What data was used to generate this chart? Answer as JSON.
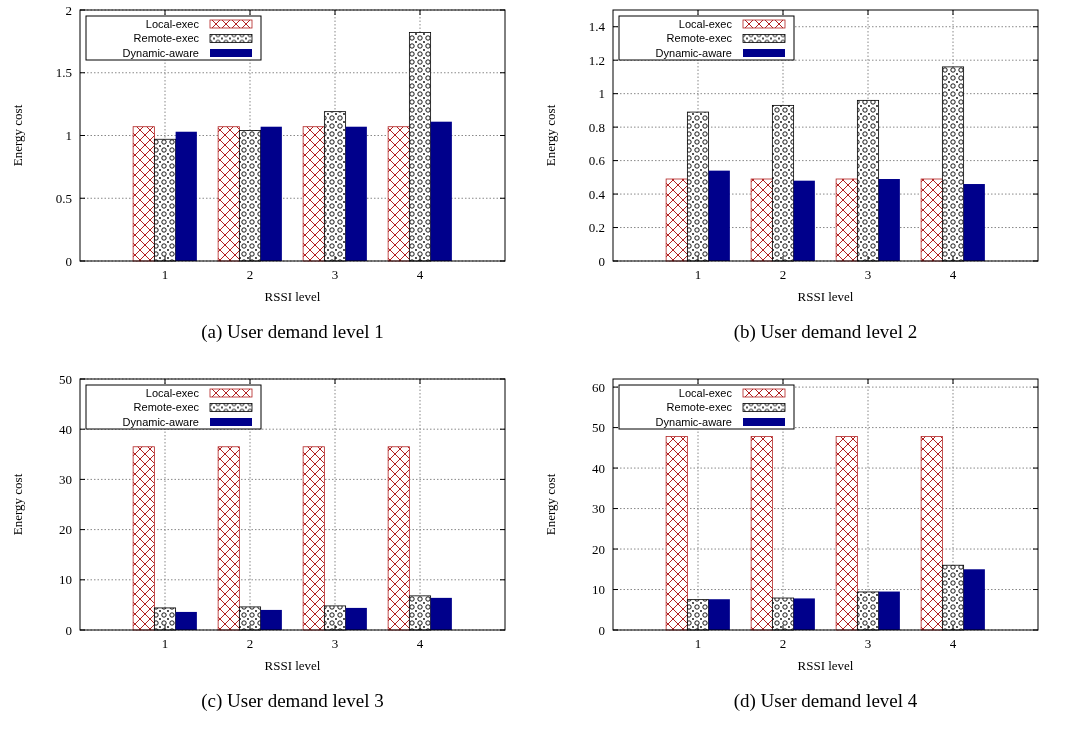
{
  "chart_data": [
    {
      "type": "bar",
      "title": "(a) User demand level 1",
      "xlabel": "RSSI level",
      "ylabel": "Energy cost",
      "x": [
        1,
        2,
        3,
        4
      ],
      "xlim": [
        0,
        5
      ],
      "xticks": [
        1,
        2,
        3,
        4
      ],
      "ylim": [
        0,
        2
      ],
      "yticks": [
        0,
        0.5,
        1,
        1.5,
        2
      ],
      "grid": true,
      "legend": "top left",
      "series": [
        {
          "name": "Local-exec",
          "color": "#b22222",
          "values": [
            1.07,
            1.07,
            1.07,
            1.07
          ]
        },
        {
          "name": "Remote-exec",
          "color": "#000000",
          "values": [
            0.97,
            1.04,
            1.19,
            1.82
          ]
        },
        {
          "name": "Dynamic-aware",
          "color": "#00008b",
          "values": [
            1.03,
            1.07,
            1.07,
            1.11
          ]
        }
      ]
    },
    {
      "type": "bar",
      "title": "(b) User demand level 2",
      "xlabel": "RSSI level",
      "ylabel": "Energy cost",
      "x": [
        1,
        2,
        3,
        4
      ],
      "xlim": [
        0,
        5
      ],
      "xticks": [
        1,
        2,
        3,
        4
      ],
      "ylim": [
        0,
        1.5
      ],
      "yticks": [
        0,
        0.2,
        0.4,
        0.6,
        0.8,
        1,
        1.2,
        1.4
      ],
      "grid": true,
      "legend": "top left",
      "series": [
        {
          "name": "Local-exec",
          "color": "#b22222",
          "values": [
            0.49,
            0.49,
            0.49,
            0.49
          ]
        },
        {
          "name": "Remote-exec",
          "color": "#000000",
          "values": [
            0.89,
            0.93,
            0.96,
            1.16
          ]
        },
        {
          "name": "Dynamic-aware",
          "color": "#00008b",
          "values": [
            0.54,
            0.48,
            0.49,
            0.46
          ]
        }
      ]
    },
    {
      "type": "bar",
      "title": "(c) User demand level 3",
      "xlabel": "RSSI level",
      "ylabel": "Energy cost",
      "x": [
        1,
        2,
        3,
        4
      ],
      "xlim": [
        0,
        5
      ],
      "xticks": [
        1,
        2,
        3,
        4
      ],
      "ylim": [
        0,
        50
      ],
      "yticks": [
        0,
        10,
        20,
        30,
        40,
        50
      ],
      "grid": true,
      "legend": "top left",
      "series": [
        {
          "name": "Local-exec",
          "color": "#b22222",
          "values": [
            36.5,
            36.5,
            36.5,
            36.5
          ]
        },
        {
          "name": "Remote-exec",
          "color": "#000000",
          "values": [
            4.4,
            4.6,
            4.8,
            6.8
          ]
        },
        {
          "name": "Dynamic-aware",
          "color": "#00008b",
          "values": [
            3.6,
            4.0,
            4.4,
            6.4
          ]
        }
      ]
    },
    {
      "type": "bar",
      "title": "(d) User demand level 4",
      "xlabel": "RSSI level",
      "ylabel": "Energy cost",
      "x": [
        1,
        2,
        3,
        4
      ],
      "xlim": [
        0,
        5
      ],
      "xticks": [
        1,
        2,
        3,
        4
      ],
      "ylim": [
        0,
        62
      ],
      "yticks": [
        0,
        10,
        20,
        30,
        40,
        50,
        60
      ],
      "grid": true,
      "legend": "top left",
      "series": [
        {
          "name": "Local-exec",
          "color": "#b22222",
          "values": [
            47.8,
            47.8,
            47.8,
            47.8
          ]
        },
        {
          "name": "Remote-exec",
          "color": "#000000",
          "values": [
            7.5,
            7.9,
            9.4,
            16
          ]
        },
        {
          "name": "Dynamic-aware",
          "color": "#00008b",
          "values": [
            7.6,
            7.8,
            9.5,
            15
          ]
        }
      ]
    }
  ]
}
